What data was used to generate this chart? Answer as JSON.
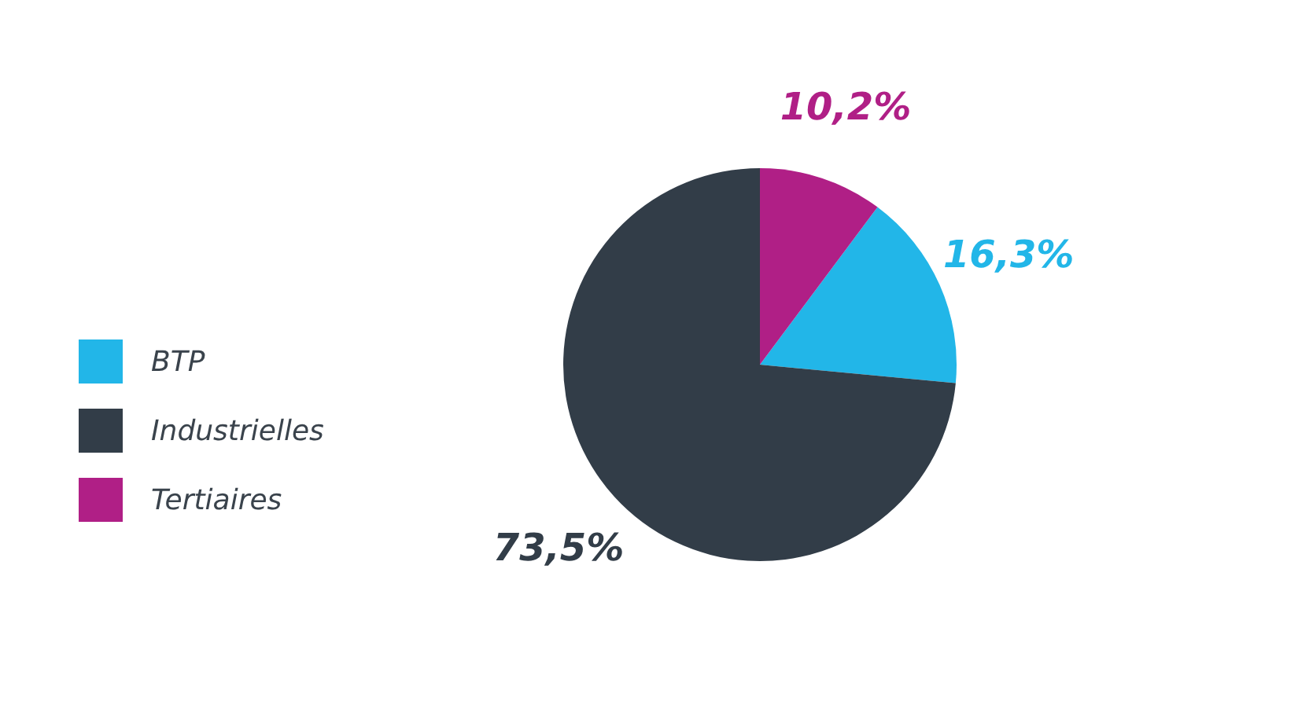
{
  "chart_data": {
    "type": "pie",
    "categories": [
      "BTP",
      "Industrielles",
      "Tertiaires"
    ],
    "values": [
      16.3,
      73.5,
      10.2
    ],
    "colors": [
      "#22b6e8",
      "#323d48",
      "#b01f86"
    ],
    "value_labels": [
      "16,3%",
      "73,5%",
      "10,2%"
    ],
    "legend": "left"
  }
}
